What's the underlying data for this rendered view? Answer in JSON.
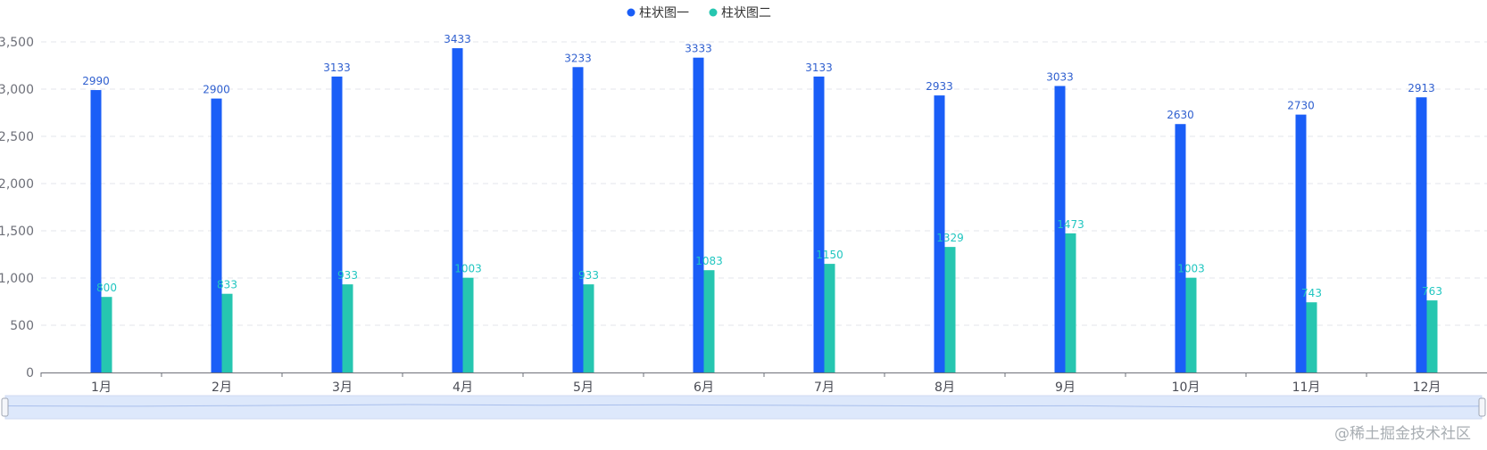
{
  "chart_data": {
    "type": "bar",
    "categories": [
      "1月",
      "2月",
      "3月",
      "4月",
      "5月",
      "6月",
      "7月",
      "8月",
      "9月",
      "10月",
      "11月",
      "12月"
    ],
    "series": [
      {
        "name": "柱状图一",
        "color": "#1a5ef7",
        "label_color": "#2f5fcf",
        "values": [
          2990,
          2900,
          3133,
          3433,
          3233,
          3333,
          3133,
          2933,
          3033,
          2630,
          2730,
          2913
        ]
      },
      {
        "name": "柱状图二",
        "color": "#26c6b0",
        "label_color": "#20c6c0",
        "values": [
          800,
          833,
          933,
          1003,
          933,
          1083,
          1150,
          1329,
          1473,
          1003,
          743,
          763
        ]
      }
    ],
    "ylim": [
      0,
      3500
    ],
    "yticks": [
      "0",
      "500",
      "1,000",
      "1,500",
      "2,000",
      "2,500",
      "3,000",
      "3,500"
    ],
    "ytick_values": [
      0,
      500,
      1000,
      1500,
      2000,
      2500,
      3000,
      3500
    ],
    "grid": true,
    "legend_position": "top-center",
    "title": "",
    "xlabel": "",
    "ylabel": "",
    "datazoom": {
      "start_percent": 0,
      "end_percent": 100
    }
  },
  "watermark": {
    "text": "@稀土掘金技术社区"
  }
}
